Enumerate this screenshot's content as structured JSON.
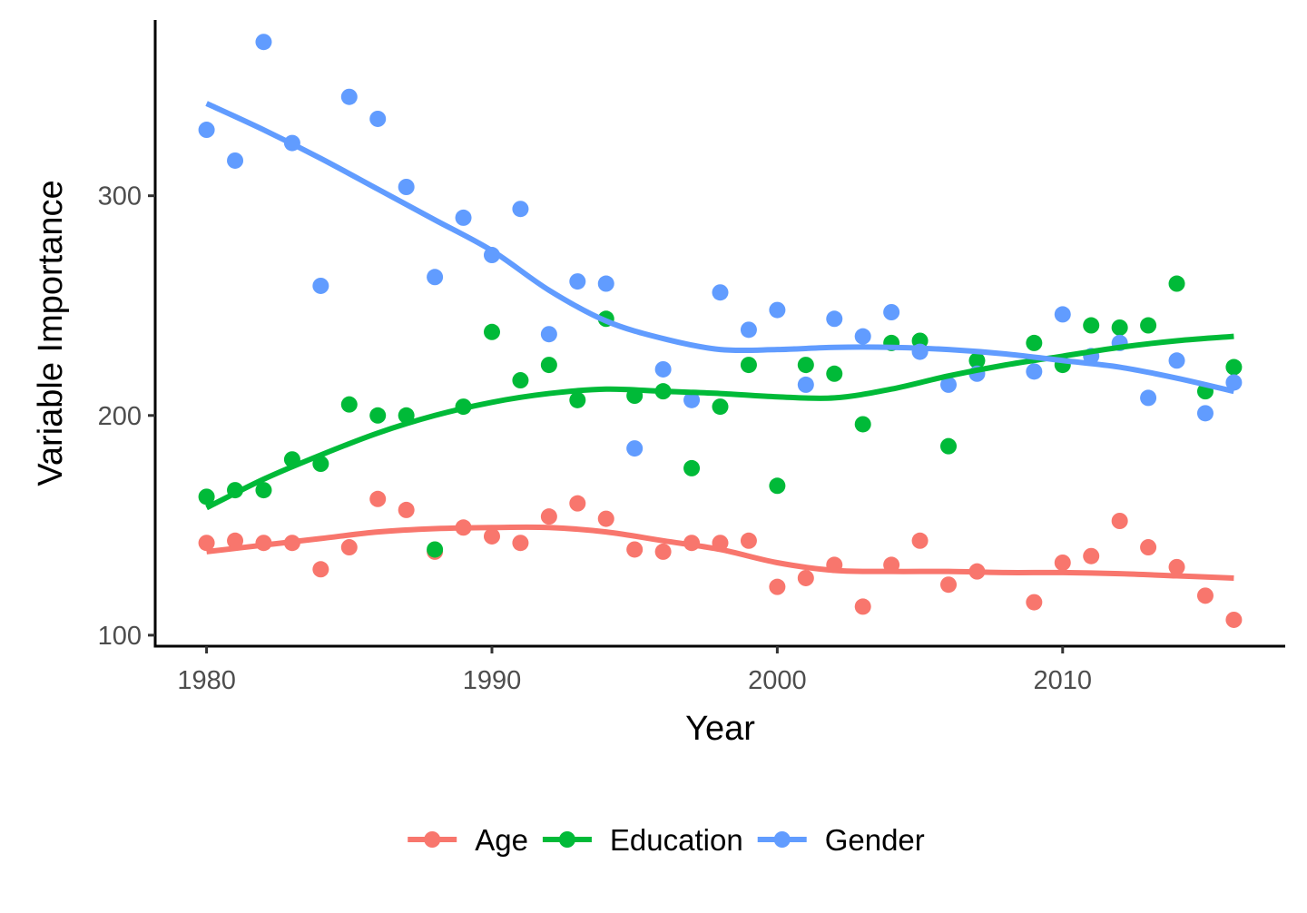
{
  "chart_data": {
    "type": "scatter",
    "title": "",
    "xlabel": "Year",
    "ylabel": "Variable Importance",
    "xlim": [
      1978.2,
      2017.8
    ],
    "ylim": [
      95,
      380
    ],
    "x_ticks": [
      1980,
      1990,
      2000,
      2010
    ],
    "y_ticks": [
      100,
      200,
      300
    ],
    "grid": false,
    "legend_position": "bottom",
    "overlay": "loess smooth line per series",
    "series": [
      {
        "name": "Age",
        "color": "#F8766D",
        "points": [
          [
            1980,
            142
          ],
          [
            1981,
            143
          ],
          [
            1982,
            142
          ],
          [
            1983,
            142
          ],
          [
            1984,
            130
          ],
          [
            1985,
            140
          ],
          [
            1986,
            162
          ],
          [
            1987,
            157
          ],
          [
            1988,
            138
          ],
          [
            1989,
            149
          ],
          [
            1990,
            145
          ],
          [
            1991,
            142
          ],
          [
            1992,
            154
          ],
          [
            1993,
            160
          ],
          [
            1994,
            153
          ],
          [
            1995,
            139
          ],
          [
            1996,
            138
          ],
          [
            1997,
            142
          ],
          [
            1998,
            142
          ],
          [
            1999,
            143
          ],
          [
            2000,
            122
          ],
          [
            2001,
            126
          ],
          [
            2002,
            132
          ],
          [
            2003,
            113
          ],
          [
            2004,
            132
          ],
          [
            2005,
            143
          ],
          [
            2006,
            123
          ],
          [
            2007,
            129
          ],
          [
            2009,
            115
          ],
          [
            2010,
            133
          ],
          [
            2011,
            136
          ],
          [
            2012,
            152
          ],
          [
            2013,
            140
          ],
          [
            2014,
            131
          ],
          [
            2015,
            118
          ],
          [
            2016,
            107
          ]
        ],
        "smooth": [
          [
            1980,
            138
          ],
          [
            1982,
            141
          ],
          [
            1984,
            144
          ],
          [
            1986,
            147
          ],
          [
            1988,
            148.5
          ],
          [
            1990,
            149
          ],
          [
            1992,
            149
          ],
          [
            1994,
            147
          ],
          [
            1996,
            143
          ],
          [
            1998,
            139
          ],
          [
            2000,
            133
          ],
          [
            2002,
            129.5
          ],
          [
            2004,
            129
          ],
          [
            2006,
            129
          ],
          [
            2008,
            128.5
          ],
          [
            2010,
            128.5
          ],
          [
            2012,
            128
          ],
          [
            2014,
            127
          ],
          [
            2016,
            126
          ]
        ]
      },
      {
        "name": "Education",
        "color": "#00BA38",
        "points": [
          [
            1980,
            163
          ],
          [
            1981,
            166
          ],
          [
            1982,
            166
          ],
          [
            1983,
            180
          ],
          [
            1984,
            178
          ],
          [
            1985,
            205
          ],
          [
            1986,
            200
          ],
          [
            1987,
            200
          ],
          [
            1988,
            139
          ],
          [
            1989,
            204
          ],
          [
            1990,
            238
          ],
          [
            1991,
            216
          ],
          [
            1992,
            223
          ],
          [
            1993,
            207
          ],
          [
            1994,
            244
          ],
          [
            1995,
            209
          ],
          [
            1996,
            211
          ],
          [
            1997,
            176
          ],
          [
            1998,
            204
          ],
          [
            1999,
            223
          ],
          [
            2000,
            168
          ],
          [
            2001,
            223
          ],
          [
            2002,
            219
          ],
          [
            2003,
            196
          ],
          [
            2004,
            233
          ],
          [
            2005,
            234
          ],
          [
            2006,
            186
          ],
          [
            2007,
            225
          ],
          [
            2009,
            233
          ],
          [
            2010,
            223
          ],
          [
            2011,
            241
          ],
          [
            2012,
            240
          ],
          [
            2013,
            241
          ],
          [
            2014,
            260
          ],
          [
            2015,
            211
          ],
          [
            2016,
            222
          ]
        ],
        "smooth": [
          [
            1980,
            158
          ],
          [
            1982,
            171
          ],
          [
            1984,
            182
          ],
          [
            1986,
            192
          ],
          [
            1988,
            200
          ],
          [
            1990,
            206
          ],
          [
            1992,
            210
          ],
          [
            1994,
            212
          ],
          [
            1996,
            211
          ],
          [
            1998,
            210
          ],
          [
            2000,
            208.5
          ],
          [
            2002,
            208
          ],
          [
            2004,
            212
          ],
          [
            2006,
            218
          ],
          [
            2008,
            223
          ],
          [
            2010,
            227
          ],
          [
            2012,
            231
          ],
          [
            2014,
            234
          ],
          [
            2016,
            236
          ]
        ]
      },
      {
        "name": "Gender",
        "color": "#619CFF",
        "points": [
          [
            1980,
            330
          ],
          [
            1981,
            316
          ],
          [
            1982,
            370
          ],
          [
            1983,
            324
          ],
          [
            1984,
            259
          ],
          [
            1985,
            345
          ],
          [
            1986,
            335
          ],
          [
            1987,
            304
          ],
          [
            1988,
            263
          ],
          [
            1989,
            290
          ],
          [
            1990,
            273
          ],
          [
            1991,
            294
          ],
          [
            1992,
            237
          ],
          [
            1993,
            261
          ],
          [
            1994,
            260
          ],
          [
            1995,
            185
          ],
          [
            1996,
            221
          ],
          [
            1997,
            207
          ],
          [
            1998,
            256
          ],
          [
            1999,
            239
          ],
          [
            2000,
            248
          ],
          [
            2001,
            214
          ],
          [
            2002,
            244
          ],
          [
            2003,
            236
          ],
          [
            2004,
            247
          ],
          [
            2005,
            229
          ],
          [
            2006,
            214
          ],
          [
            2007,
            219
          ],
          [
            2009,
            220
          ],
          [
            2010,
            246
          ],
          [
            2011,
            227
          ],
          [
            2012,
            233
          ],
          [
            2013,
            208
          ],
          [
            2014,
            225
          ],
          [
            2015,
            201
          ],
          [
            2016,
            215
          ]
        ],
        "smooth": [
          [
            1980,
            342
          ],
          [
            1982,
            330
          ],
          [
            1984,
            317
          ],
          [
            1986,
            303
          ],
          [
            1988,
            289
          ],
          [
            1990,
            275
          ],
          [
            1992,
            257
          ],
          [
            1994,
            243
          ],
          [
            1996,
            235
          ],
          [
            1998,
            230
          ],
          [
            2000,
            230
          ],
          [
            2002,
            231
          ],
          [
            2004,
            231
          ],
          [
            2006,
            230
          ],
          [
            2008,
            228
          ],
          [
            2010,
            225
          ],
          [
            2012,
            222
          ],
          [
            2014,
            217
          ],
          [
            2016,
            211
          ]
        ]
      }
    ]
  }
}
